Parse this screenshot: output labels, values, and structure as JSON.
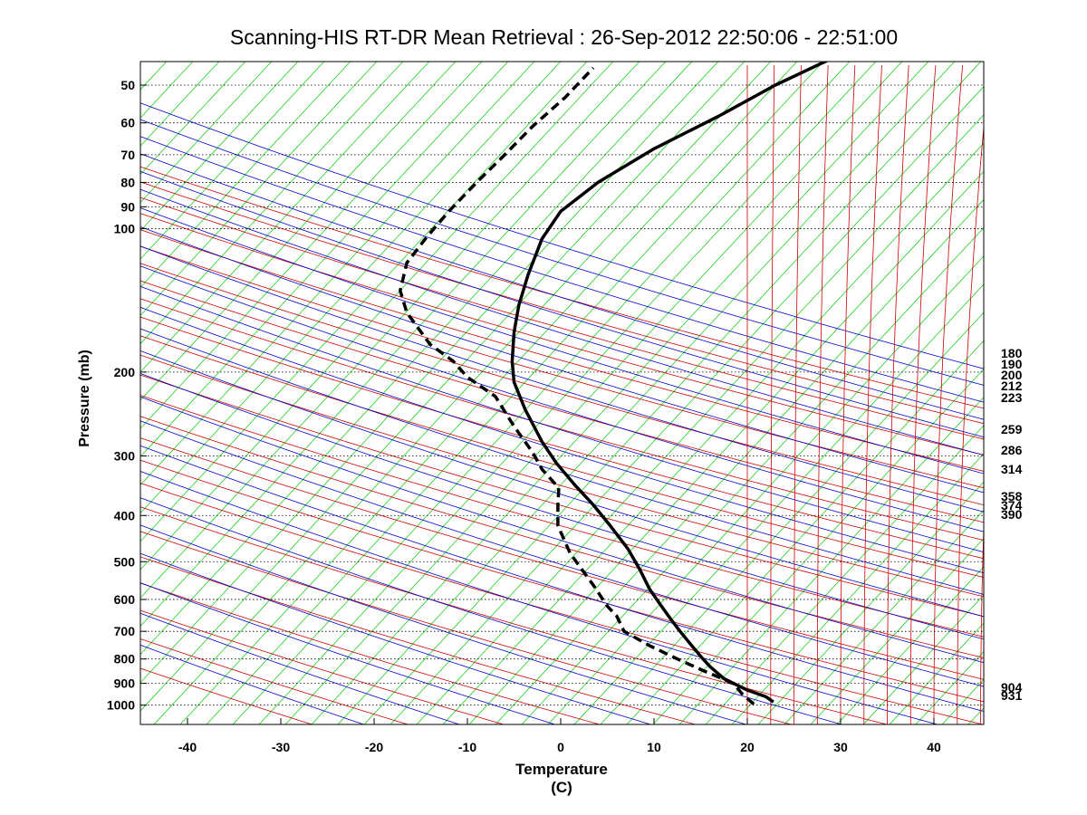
{
  "chart_data": {
    "type": "line",
    "title": "Scanning-HIS RT-DR Mean Retrieval : 26-Sep-2012 22:50:06 - 22:51:00",
    "xlabel": "Temperature (C)",
    "ylabel": "Pressure (mb)",
    "x_range": [
      -45,
      45
    ],
    "y_range": [
      1070,
      43
    ],
    "y_scale": "log",
    "x_ticks": [
      "-40",
      "-30",
      "-20",
      "-10",
      "0",
      "10",
      "20",
      "30",
      "40"
    ],
    "y_ticks": [
      "50",
      "60",
      "70",
      "80",
      "90",
      "100",
      "200",
      "300",
      "400",
      "500",
      "600",
      "700",
      "800",
      "900",
      "1000"
    ],
    "right_labels": [
      "180",
      "190",
      "200",
      "212",
      "223",
      "259",
      "286",
      "314",
      "358",
      "374",
      "390",
      "904",
      "931"
    ],
    "background_lines": {
      "dry_adiabats_color": "#cc0000",
      "moist_adiabats_color": "#0000cc",
      "mixing_ratio_color": "#00cc00",
      "isobars": "dotted"
    },
    "series": [
      {
        "style": "solid",
        "color": "#000000",
        "points": [
          [
            22.8,
            985
          ],
          [
            22.0,
            960
          ],
          [
            20.0,
            930
          ],
          [
            17.5,
            880
          ],
          [
            16.0,
            830
          ],
          [
            15.0,
            790
          ],
          [
            13.8,
            740
          ],
          [
            12.8,
            700
          ],
          [
            11.8,
            660
          ],
          [
            10.8,
            620
          ],
          [
            9.5,
            570
          ],
          [
            8.5,
            520
          ],
          [
            7.2,
            470
          ],
          [
            5.3,
            420
          ],
          [
            3.5,
            380
          ],
          [
            1.5,
            345
          ],
          [
            -0.5,
            310
          ],
          [
            -2.0,
            280
          ],
          [
            -3.8,
            240
          ],
          [
            -5.0,
            210
          ],
          [
            -5.2,
            190
          ],
          [
            -5.0,
            165
          ],
          [
            -4.5,
            145
          ],
          [
            -3.5,
            125
          ],
          [
            -2.0,
            105
          ],
          [
            0.0,
            92
          ],
          [
            4.0,
            80
          ],
          [
            10.0,
            68
          ],
          [
            17.0,
            58
          ],
          [
            23.0,
            50
          ],
          [
            29.0,
            44
          ]
        ]
      },
      {
        "style": "dashed",
        "color": "#000000",
        "points": [
          [
            20.7,
            995
          ],
          [
            19.5,
            950
          ],
          [
            18.5,
            900
          ],
          [
            15.5,
            850
          ],
          [
            12.5,
            800
          ],
          [
            9.5,
            750
          ],
          [
            6.8,
            700
          ],
          [
            6.0,
            650
          ],
          [
            5.0,
            620
          ],
          [
            3.5,
            560
          ],
          [
            1.0,
            480
          ],
          [
            -0.3,
            420
          ],
          [
            -0.3,
            380
          ],
          [
            -0.2,
            350
          ],
          [
            -2.0,
            320
          ],
          [
            -3.0,
            295
          ],
          [
            -5.0,
            260
          ],
          [
            -7.0,
            225
          ],
          [
            -10.0,
            205
          ],
          [
            -11.5,
            190
          ],
          [
            -14.0,
            175
          ],
          [
            -16.5,
            150
          ],
          [
            -17.2,
            135
          ],
          [
            -16.5,
            118
          ],
          [
            -14.5,
            105
          ],
          [
            -12.0,
            92
          ],
          [
            -9.0,
            80
          ],
          [
            -6.0,
            70
          ],
          [
            -3.0,
            61
          ],
          [
            0.5,
            53
          ],
          [
            3.5,
            46
          ]
        ]
      }
    ]
  }
}
